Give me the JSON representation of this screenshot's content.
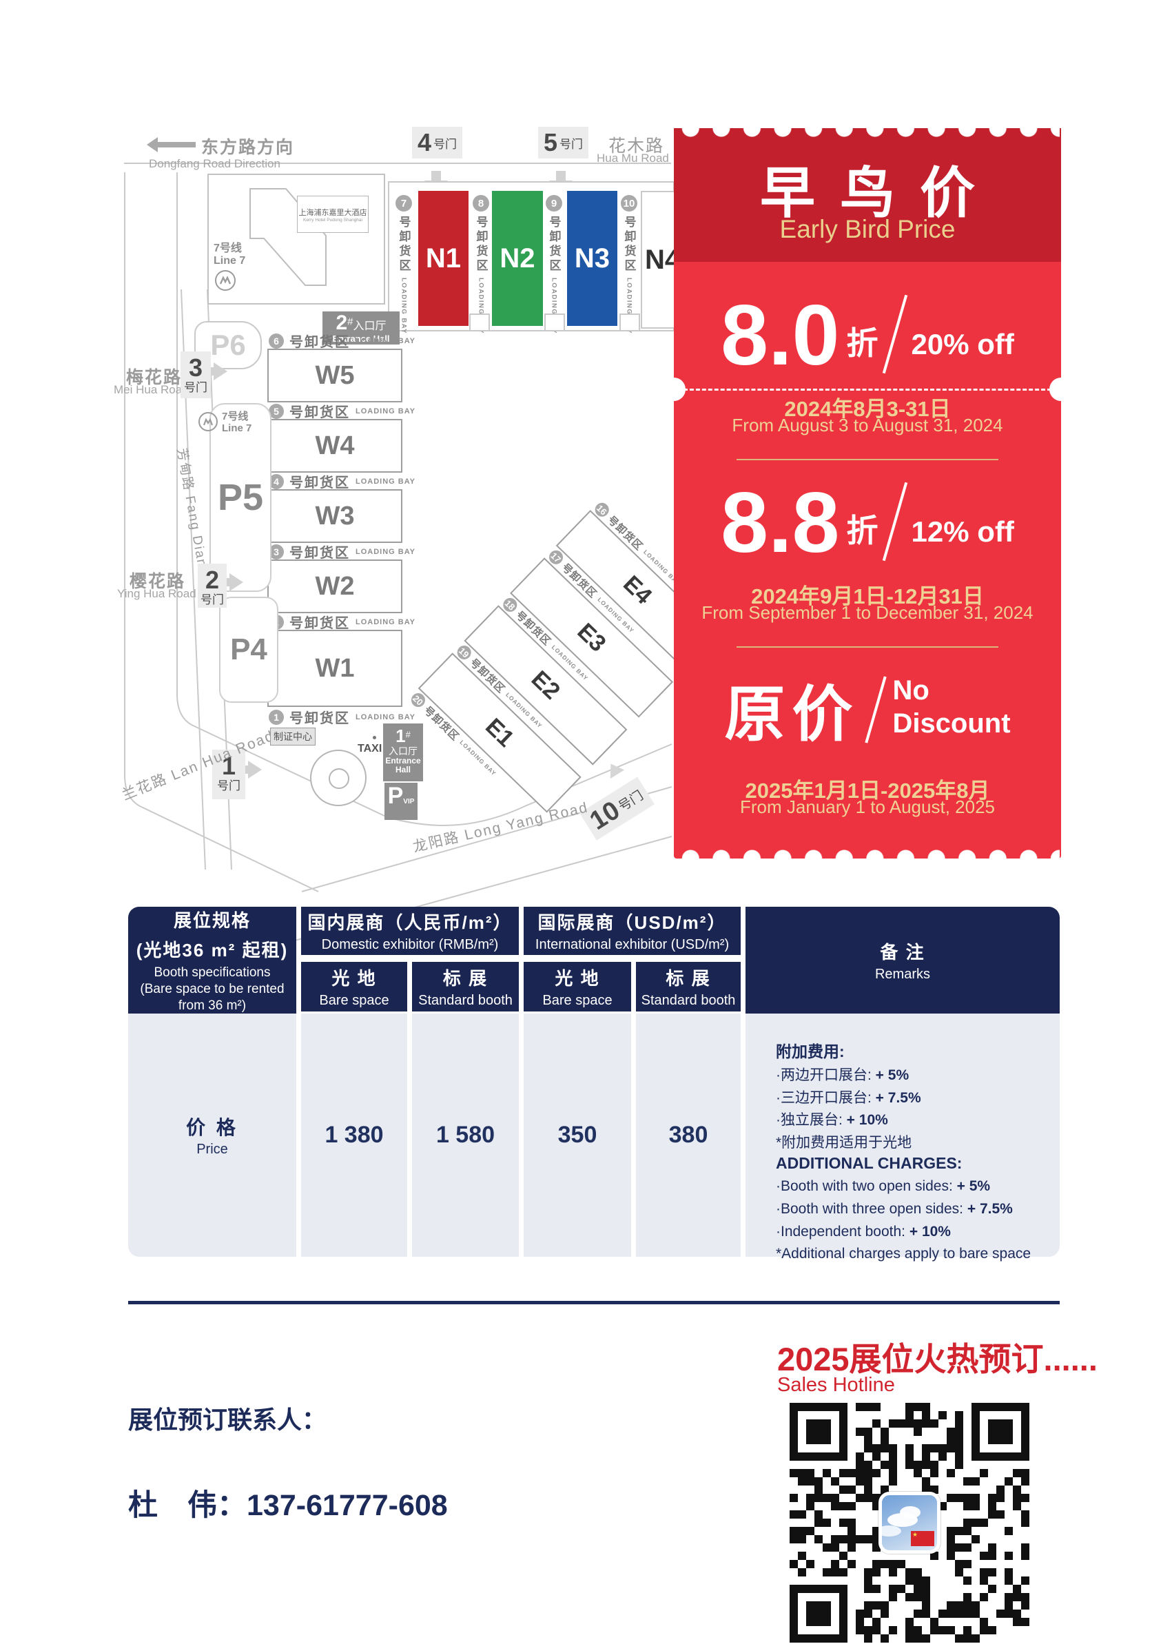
{
  "colors": {
    "navy": "#1a2551",
    "navy_text": "#1c2b5a",
    "body_gray": "#e9ebf2",
    "accent_red": "#d2242e",
    "ticket_header": "#c2202d",
    "ticket_body": "#ee3340",
    "gold": "#e9cf8e",
    "hall_n1": "#c4242c",
    "hall_n2": "#2fa052",
    "hall_n3": "#1e57a5"
  },
  "map": {
    "direction": {
      "cn": "东方路方向",
      "en": "Dongfang Road Direction"
    },
    "roads": {
      "huamu": {
        "cn": "花木路",
        "en": "Hua Mu Road"
      },
      "meihua": {
        "cn": "梅花路",
        "en": "Mei Hua Road"
      },
      "yinghua": {
        "cn": "樱花路",
        "en": "Ying Hua Road"
      },
      "lanhua": {
        "label": "兰花路 Lan Hua Road"
      },
      "fangdian": {
        "label": "芳甸路 Fang Dian Road"
      },
      "longyang": {
        "label": "龙阳路 Long Yang Road"
      }
    },
    "hotel": {
      "cn": "上海浦东嘉里大酒店",
      "en": "Kerry Hotel Pudong Shanghai"
    },
    "metro": {
      "cn": "7号线",
      "en": "Line 7"
    },
    "gates": [
      {
        "num": "4",
        "suffix": "号门"
      },
      {
        "num": "5",
        "suffix": "号门"
      },
      {
        "num": "3",
        "suffix": "号门"
      },
      {
        "num": "2",
        "suffix": "号门"
      },
      {
        "num": "1",
        "suffix": "号门"
      },
      {
        "num": "10",
        "suffix": "号门"
      }
    ],
    "parking": [
      "P6",
      "P5",
      "P4"
    ],
    "n_halls": [
      "N1",
      "N2",
      "N3",
      "N4"
    ],
    "w_halls": [
      "W5",
      "W4",
      "W3",
      "W2",
      "W1"
    ],
    "e_halls": [
      "E4",
      "E3",
      "E2",
      "E1"
    ],
    "bay_cn": "号卸货区",
    "bay_en": "LOADING BAY",
    "n_bays": [
      "7",
      "8",
      "9",
      "10"
    ],
    "w_bays": [
      "6",
      "5",
      "4",
      "3",
      "2",
      "1"
    ],
    "e_bays": [
      "16",
      "17",
      "18",
      "19",
      "20"
    ],
    "entrance2": {
      "num": "2",
      "hash": "#",
      "cn": "入口厅",
      "en": "Entrance Hall"
    },
    "entrance1": {
      "num": "1",
      "hash": "#",
      "cn": "入口厅",
      "en": "Entrance Hall"
    },
    "cert": "制证中心",
    "taxi": "TAXI",
    "vip": {
      "p": "P",
      "sub": "VIP"
    }
  },
  "ticket": {
    "title_cn": "早鸟价",
    "title_en": "Early Bird Price",
    "tiers": [
      {
        "rate": "8.0",
        "zhe": "折",
        "off": "20% off",
        "date_cn": "2024年8月3-31日",
        "date_en": "From August 3 to August 31, 2024"
      },
      {
        "rate": "8.8",
        "zhe": "折",
        "off": "12% off",
        "date_cn": "2024年9月1日-12月31日",
        "date_en": "From September 1 to December 31, 2024"
      },
      {
        "rate": "原价",
        "off1": "No",
        "off2": "Discount",
        "date_cn": "2025年1月1日-2025年8月",
        "date_en": "From January 1 to August, 2025"
      }
    ]
  },
  "table": {
    "spec": {
      "cn1": "展位规格",
      "cn2": "(光地36 m² 起租)",
      "en": "Booth specifications\n(Bare space to be rented\nfrom 36 m²)"
    },
    "domestic": {
      "cn": "国内展商（人民币/m²）",
      "en": "Domestic exhibitor (RMB/m²)"
    },
    "international": {
      "cn": "国际展商（USD/m²）",
      "en": "International exhibitor (USD/m²)"
    },
    "bare": {
      "cn": "光 地",
      "en": "Bare space"
    },
    "standard": {
      "cn": "标 展",
      "en": "Standard booth"
    },
    "remarks": {
      "cn": "备 注",
      "en": "Remarks"
    },
    "price_row": {
      "cn": "价 格",
      "en": "Price",
      "values": [
        "1 380",
        "1 580",
        "350",
        "380"
      ]
    },
    "remarks_cn_title": "附加费用:",
    "remarks_cn_lines": [
      {
        "pre": "·两边开口展台: ",
        "bold": "+ 5%"
      },
      {
        "pre": "·三边开口展台: ",
        "bold": "+ 7.5%"
      },
      {
        "pre": "·独立展台: ",
        "bold": "+ 10%"
      },
      {
        "pre": "*附加费用适用于光地",
        "bold": ""
      }
    ],
    "remarks_en_title": "ADDITIONAL CHARGES:",
    "remarks_en_lines": [
      {
        "pre": "·Booth with two open sides: ",
        "bold": "+ 5%"
      },
      {
        "pre": "·Booth with three open sides: ",
        "bold": "+ 7.5%"
      },
      {
        "pre": "·Independent booth: ",
        "bold": "+ 10%"
      },
      {
        "pre": "*Additional charges apply to bare space",
        "bold": ""
      }
    ]
  },
  "footer": {
    "hotline_cn": "2025展位火热预订......",
    "hotline_en": "Sales Hotline",
    "contact_label": "展位预订联系人：",
    "contact_phone": "杜　伟：137-61777-608"
  }
}
